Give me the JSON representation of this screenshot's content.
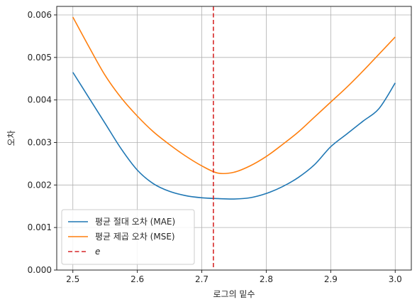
{
  "chart_data": {
    "type": "line",
    "xlabel": "로그의 밑수",
    "ylabel": "오차",
    "xlim": [
      2.475,
      3.025
    ],
    "ylim": [
      0.0,
      0.0062
    ],
    "xticks": [
      2.5,
      2.6,
      2.7,
      2.8,
      2.9,
      3.0
    ],
    "xtick_labels": [
      "2.5",
      "2.6",
      "2.7",
      "2.8",
      "2.9",
      "3.0"
    ],
    "yticks": [
      0.0,
      0.001,
      0.002,
      0.003,
      0.004,
      0.005,
      0.006
    ],
    "ytick_labels": [
      "0.000",
      "0.001",
      "0.002",
      "0.003",
      "0.004",
      "0.005",
      "0.006"
    ],
    "grid": true,
    "legend_position": "lower-left",
    "series": [
      {
        "name": "평균 절대 오차 (MAE)",
        "color": "#1f77b4",
        "style": "solid",
        "x": [
          2.5,
          2.525,
          2.55,
          2.575,
          2.6,
          2.625,
          2.65,
          2.675,
          2.7,
          2.725,
          2.75,
          2.775,
          2.8,
          2.825,
          2.85,
          2.875,
          2.9,
          2.925,
          2.95,
          2.975,
          3.0
        ],
        "y": [
          0.00465,
          0.00405,
          0.00345,
          0.00285,
          0.00235,
          0.00203,
          0.00185,
          0.00175,
          0.0017,
          0.00168,
          0.00167,
          0.0017,
          0.0018,
          0.00196,
          0.00218,
          0.00248,
          0.0029,
          0.0032,
          0.0035,
          0.0038,
          0.0044
        ]
      },
      {
        "name": "평균 제곱 오차 (MSE)",
        "color": "#ff7f0e",
        "style": "solid",
        "x": [
          2.5,
          2.525,
          2.55,
          2.575,
          2.6,
          2.625,
          2.65,
          2.675,
          2.7,
          2.725,
          2.75,
          2.775,
          2.8,
          2.825,
          2.85,
          2.875,
          2.9,
          2.925,
          2.95,
          2.975,
          3.0
        ],
        "y": [
          0.00595,
          0.00525,
          0.00458,
          0.00405,
          0.00362,
          0.00325,
          0.00295,
          0.00268,
          0.00245,
          0.00228,
          0.0023,
          0.00245,
          0.00267,
          0.00295,
          0.00325,
          0.0036,
          0.00395,
          0.0043,
          0.00468,
          0.00508,
          0.00548
        ]
      }
    ],
    "reference_lines": [
      {
        "name": "e",
        "orientation": "vertical",
        "x": 2.718,
        "color": "#d62728",
        "style": "dashed"
      }
    ]
  }
}
